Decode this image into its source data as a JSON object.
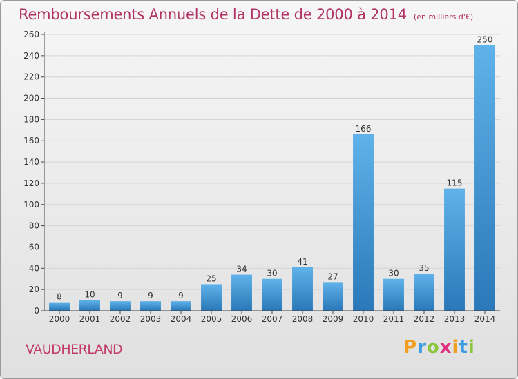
{
  "header": {
    "title": "Remboursements Annuels de la Dette de 2000 à 2014",
    "unit": "(en milliers d'€)"
  },
  "commune": "VAUDHERLAND",
  "brand": {
    "letters": [
      "P",
      "r",
      "o",
      "x",
      "i",
      "t",
      "i"
    ],
    "colors": [
      "#f0a020",
      "#3b9de0",
      "#8cc63f",
      "#e03080",
      "#f0a020",
      "#3b9de0",
      "#8cc63f"
    ]
  },
  "colors": {
    "bar_light": "#5fb2ea",
    "bar_dark": "#2a78b8",
    "title": "#b03565",
    "grid": "#d3d3d3",
    "axis": "#444444"
  },
  "chart_data": {
    "type": "bar",
    "title": "Remboursements Annuels de la Dette de 2000 à 2014",
    "categories": [
      "2000",
      "2001",
      "2002",
      "2003",
      "2004",
      "2005",
      "2006",
      "2007",
      "2008",
      "2009",
      "2010",
      "2011",
      "2012",
      "2013",
      "2014"
    ],
    "values": [
      8,
      10,
      9,
      9,
      9,
      25,
      34,
      30,
      41,
      27,
      166,
      30,
      35,
      115,
      250
    ],
    "ylim": [
      0,
      260
    ],
    "yticks": [
      0,
      20,
      40,
      60,
      80,
      100,
      120,
      140,
      160,
      180,
      200,
      220,
      240,
      260
    ],
    "grid": true,
    "data_labels": true
  }
}
